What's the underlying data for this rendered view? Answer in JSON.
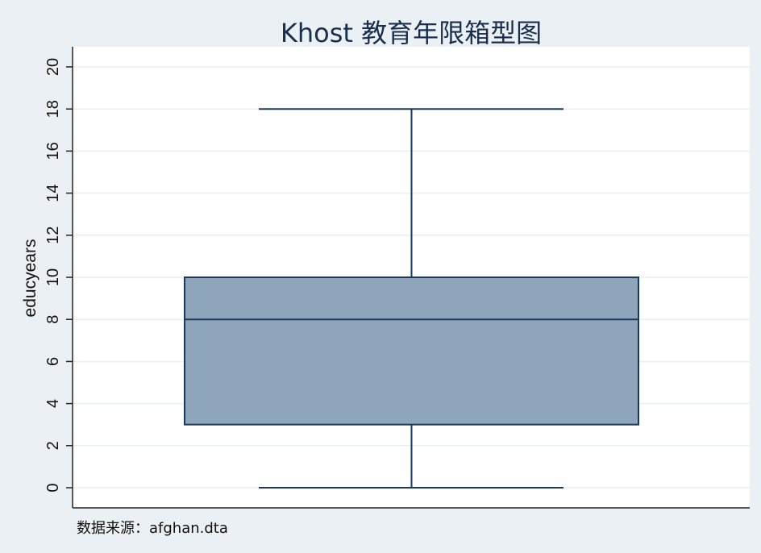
{
  "chart_data": {
    "type": "box",
    "title": "Khost 教育年限箱型图",
    "ylabel": "educyears",
    "ylim": [
      0,
      20
    ],
    "yticks": [
      0,
      2,
      4,
      6,
      8,
      10,
      12,
      14,
      16,
      18,
      20
    ],
    "grid": true,
    "box": {
      "min": 0,
      "q1": 3,
      "median": 8,
      "q3": 10,
      "max": 18
    },
    "colors": {
      "box_fill": "#8ea5bb",
      "line": "#1a3a5c",
      "grid": "#e8eef1",
      "background": "#eaf0f3",
      "plot_background": "#ffffff"
    },
    "note": "数据来源：afghan.dta"
  }
}
